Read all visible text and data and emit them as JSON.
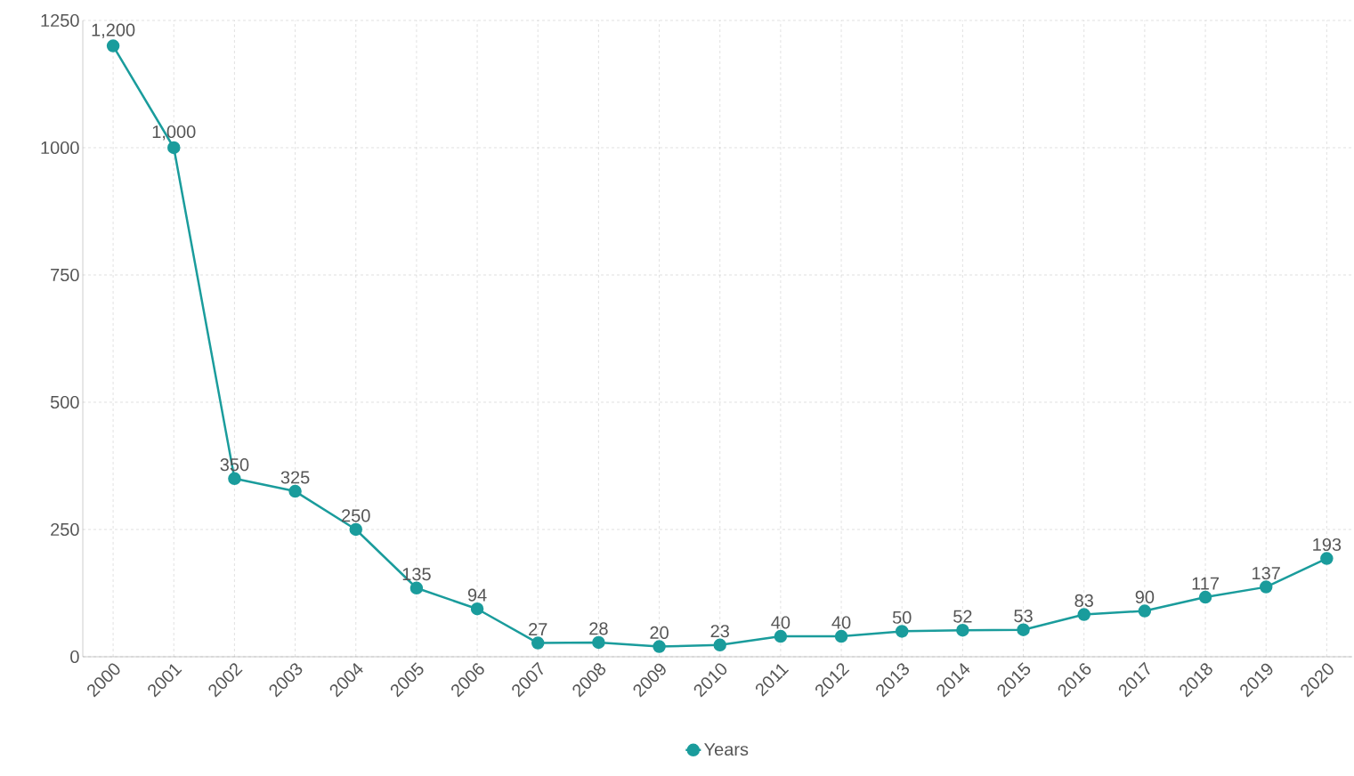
{
  "chart_data": {
    "type": "line",
    "categories": [
      "2000",
      "2001",
      "2002",
      "2003",
      "2004",
      "2005",
      "2006",
      "2007",
      "2008",
      "2009",
      "2010",
      "2011",
      "2012",
      "2013",
      "2014",
      "2015",
      "2016",
      "2017",
      "2018",
      "2019",
      "2020"
    ],
    "series": [
      {
        "name": "Years",
        "color": "#1a9c9c",
        "values": [
          1200,
          1000,
          350,
          325,
          250,
          135,
          94,
          27,
          28,
          20,
          23,
          40,
          40,
          50,
          52,
          53,
          83,
          90,
          117,
          137,
          193
        ],
        "value_labels": [
          "1,200",
          "1,000",
          "350",
          "325",
          "250",
          "135",
          "94",
          "27",
          "28",
          "20",
          "23",
          "40",
          "40",
          "50",
          "52",
          "53",
          "83",
          "90",
          "117",
          "137",
          "193"
        ]
      }
    ],
    "ylim": [
      0,
      1250
    ],
    "yticks": [
      0,
      250,
      500,
      750,
      1000,
      1250
    ],
    "grid": true,
    "legend": "bottom",
    "marker": "circle",
    "line_style": "solid"
  }
}
